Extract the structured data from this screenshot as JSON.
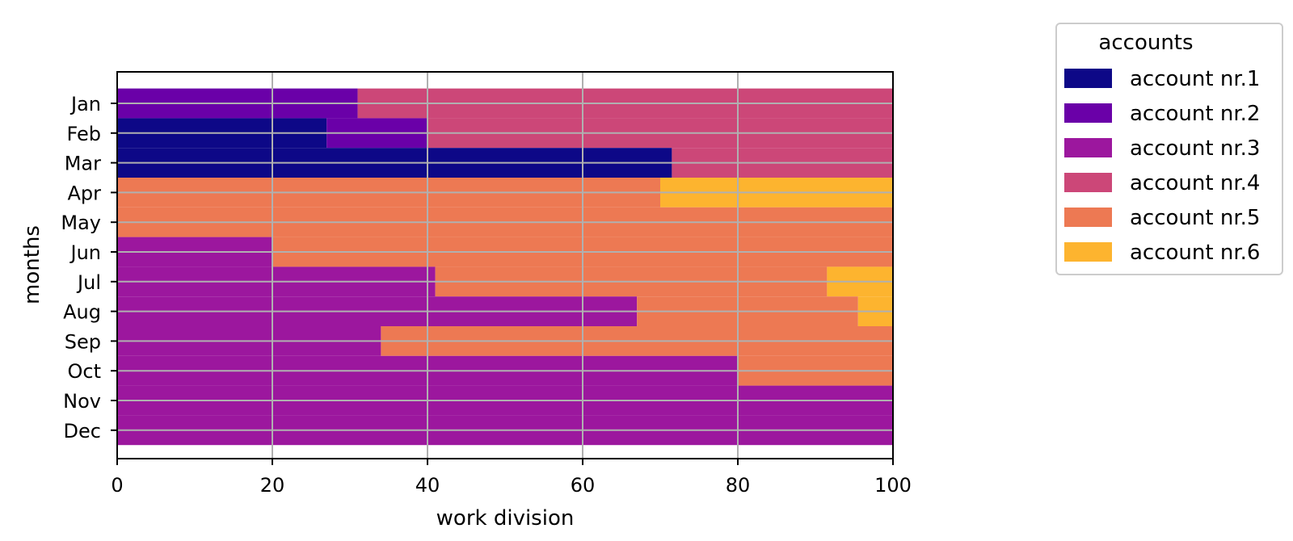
{
  "chart_data": {
    "type": "bar",
    "orientation": "horizontal",
    "stacked": true,
    "title": "",
    "xlabel": "work division",
    "ylabel": "months",
    "xlim": [
      0,
      100
    ],
    "x_ticks": [
      0,
      20,
      40,
      60,
      80,
      100
    ],
    "grid": true,
    "categories": [
      "Jan",
      "Feb",
      "Mar",
      "Apr",
      "May",
      "Jun",
      "Jul",
      "Aug",
      "Sep",
      "Oct",
      "Nov",
      "Dec"
    ],
    "series": [
      {
        "name": "account nr.1",
        "color": "#0d0887",
        "values": [
          0,
          27,
          71.5,
          0,
          0,
          0,
          0,
          0,
          0,
          0,
          0,
          0
        ]
      },
      {
        "name": "account nr.2",
        "color": "#6a00a8",
        "values": [
          31,
          13,
          0,
          0,
          0,
          0,
          0,
          0,
          0,
          0,
          0,
          0
        ]
      },
      {
        "name": "account nr.3",
        "color": "#9c179e",
        "values": [
          0,
          0,
          0,
          0,
          0,
          20,
          41,
          67,
          34,
          80,
          100,
          100
        ]
      },
      {
        "name": "account nr.4",
        "color": "#cc4778",
        "values": [
          69,
          60,
          28.5,
          0,
          0,
          0,
          0,
          0,
          0,
          0,
          0,
          0
        ]
      },
      {
        "name": "account nr.5",
        "color": "#ed7953",
        "values": [
          0,
          0,
          0,
          70,
          100,
          80,
          50.5,
          28.5,
          66,
          20,
          0,
          0
        ]
      },
      {
        "name": "account nr.6",
        "color": "#fdb42f",
        "values": [
          0,
          0,
          0,
          30,
          0,
          0,
          8.5,
          4.5,
          0,
          0,
          0,
          0
        ]
      }
    ],
    "legend": {
      "title": "accounts",
      "placement": "outside-right-top"
    }
  }
}
